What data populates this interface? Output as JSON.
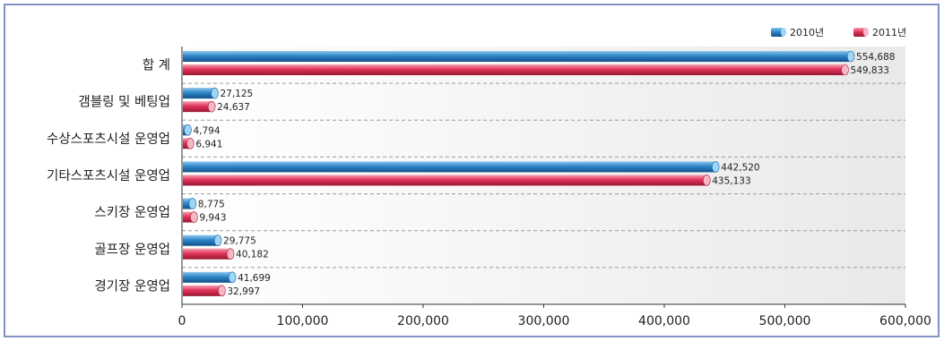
{
  "chart_data": {
    "type": "bar",
    "orientation": "horizontal",
    "categories": [
      "합 계",
      "갬블링 및 베팅업",
      "수상스포츠시설 운영업",
      "기타스포츠시설 운영업",
      "스키장 운영업",
      "골프장 운영업",
      "경기장 운영업"
    ],
    "series": [
      {
        "name": "2010년",
        "color": "#2e86c8",
        "values": [
          554688,
          27125,
          4794,
          442520,
          8775,
          29775,
          41699
        ],
        "labels": [
          "554,688",
          "27,125",
          "4,794",
          "442,520",
          "8,775",
          "29,775",
          "41,699"
        ]
      },
      {
        "name": "2011년",
        "color": "#e0345a",
        "values": [
          549833,
          24637,
          6941,
          435133,
          9943,
          40182,
          32997
        ],
        "labels": [
          "549,833",
          "24,637",
          "6,941",
          "435,133",
          "9,943",
          "40,182",
          "32,997"
        ]
      }
    ],
    "xlim": [
      0,
      600000
    ],
    "xticks": [
      0,
      100000,
      200000,
      300000,
      400000,
      500000,
      600000
    ],
    "xtick_labels": [
      "0",
      "100,000",
      "200,000",
      "300,000",
      "400,000",
      "500,000",
      "600,000"
    ],
    "grid": "dashed horizontal separators",
    "legend_position": "top-right"
  }
}
